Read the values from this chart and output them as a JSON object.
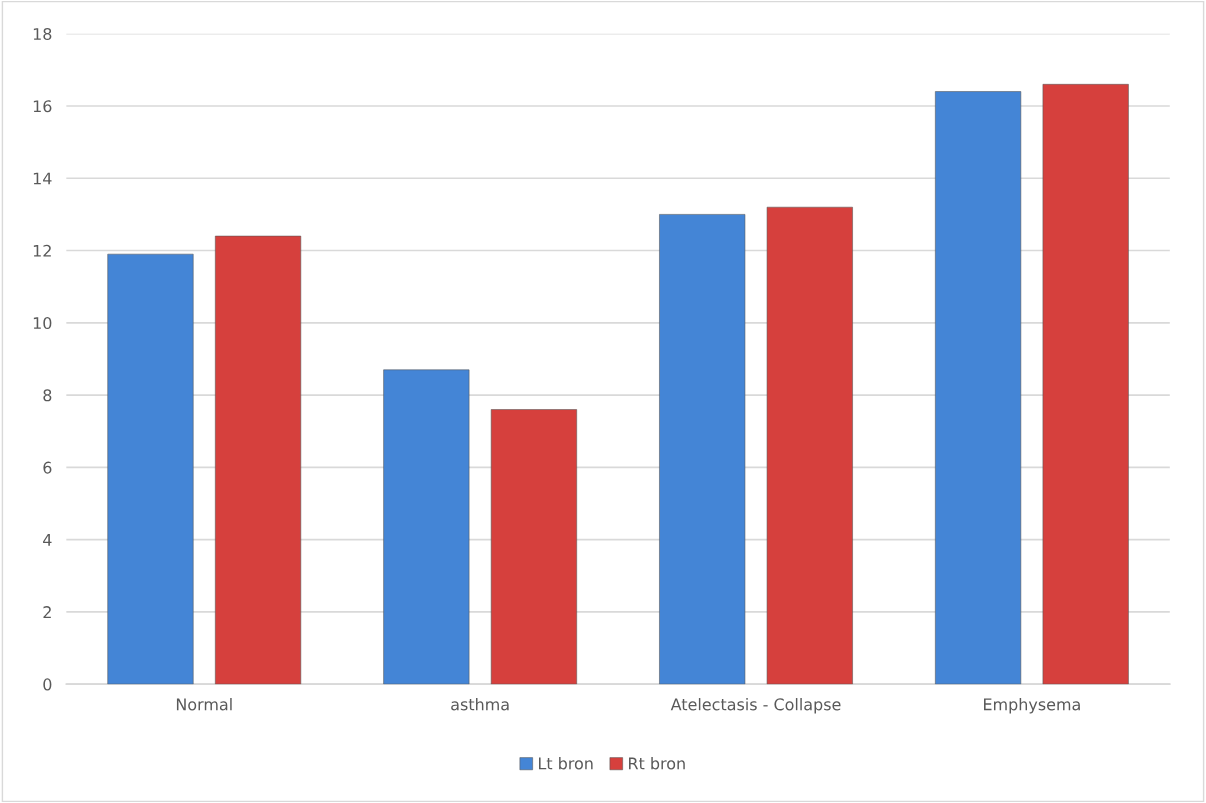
{
  "chart_data": {
    "type": "bar",
    "categories": [
      "Normal",
      "asthma",
      "Atelectasis - Collapse",
      "Emphysema"
    ],
    "series": [
      {
        "name": "Lt bron",
        "color": "#4485d6",
        "values": [
          11.9,
          8.7,
          13.0,
          16.4
        ]
      },
      {
        "name": "Rt bron",
        "color": "#d6403d",
        "values": [
          12.4,
          7.6,
          13.2,
          16.6
        ]
      }
    ],
    "ylim": [
      0,
      18
    ],
    "yticks": [
      0,
      2,
      4,
      6,
      8,
      10,
      12,
      14,
      16,
      18
    ],
    "grid": "y",
    "legend": "bottom"
  }
}
